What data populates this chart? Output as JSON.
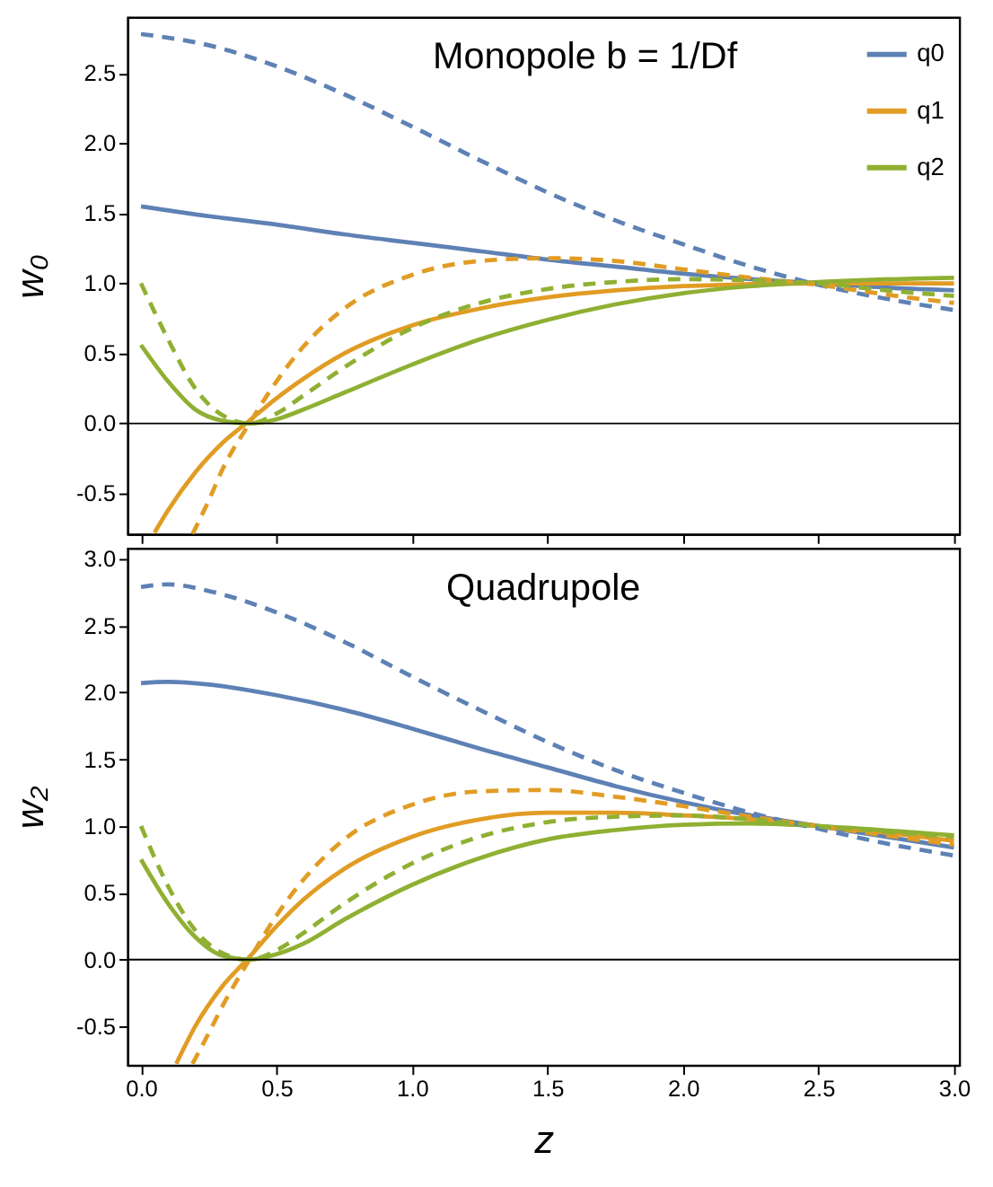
{
  "chart_data": [
    {
      "type": "line",
      "ylabel": "w₀",
      "annotations": [
        "Monopole    b = 1/Df"
      ],
      "xlim": [
        -0.05,
        3.02
      ],
      "ylim": [
        -0.79,
        2.9
      ],
      "xticks": [
        0,
        0.5,
        1,
        1.5,
        2,
        2.5,
        3
      ],
      "yticks": [
        -0.5,
        {
          "value": 0,
          "label": "0.0"
        },
        0.5,
        {
          "value": 1,
          "label": "1.0"
        },
        1.5,
        {
          "value": 2,
          "label": "2.0"
        },
        2.5
      ],
      "tick_labels": "y",
      "grid": false,
      "legend": "top right",
      "ref_lines": [
        {
          "axis": "y",
          "value": 0,
          "color": "#000000"
        }
      ],
      "series": [
        {
          "name": "q0",
          "color": "#5e81b5",
          "line_style": "solid",
          "x": [
            0,
            0.25,
            0.5,
            0.75,
            1.0,
            1.25,
            1.5,
            1.75,
            2.0,
            2.25,
            2.5,
            2.75,
            3.0
          ],
          "values": [
            1.55,
            1.48,
            1.42,
            1.35,
            1.29,
            1.23,
            1.17,
            1.12,
            1.07,
            1.03,
            1.0,
            0.97,
            0.95
          ]
        },
        {
          "name": "q1",
          "color": "#e19c24",
          "line_style": "solid",
          "x": [
            0.05,
            0.1,
            0.2,
            0.3,
            0.4,
            0.5,
            0.6,
            0.75,
            1.0,
            1.25,
            1.5,
            1.75,
            2.0,
            2.5,
            3.0
          ],
          "values": [
            -0.78,
            -0.62,
            -0.35,
            -0.14,
            0.02,
            0.18,
            0.32,
            0.5,
            0.7,
            0.82,
            0.9,
            0.95,
            0.98,
            1.0,
            1.0
          ]
        },
        {
          "name": "q2",
          "color": "#8fb032",
          "line_style": "solid",
          "x": [
            0,
            0.1,
            0.2,
            0.3,
            0.4,
            0.5,
            0.6,
            0.75,
            1.0,
            1.25,
            1.5,
            1.75,
            2.0,
            2.25,
            2.5,
            3.0
          ],
          "values": [
            0.56,
            0.3,
            0.1,
            0.02,
            0.0,
            0.03,
            0.1,
            0.22,
            0.42,
            0.6,
            0.74,
            0.85,
            0.93,
            0.98,
            1.01,
            1.04
          ]
        },
        {
          "color": "#5e81b5",
          "line_style": "dashed",
          "x": [
            0,
            0.25,
            0.5,
            0.75,
            1.0,
            1.25,
            1.5,
            1.75,
            2.0,
            2.25,
            2.5,
            2.75,
            3.0
          ],
          "values": [
            2.78,
            2.7,
            2.55,
            2.35,
            2.12,
            1.88,
            1.65,
            1.45,
            1.28,
            1.12,
            0.99,
            0.89,
            0.81
          ]
        },
        {
          "color": "#e19c24",
          "line_style": "dashed",
          "x": [
            0.19,
            0.25,
            0.3,
            0.4,
            0.5,
            0.6,
            0.75,
            1.0,
            1.25,
            1.5,
            1.75,
            2.0,
            2.25,
            2.5,
            2.75,
            3.0
          ],
          "values": [
            -0.79,
            -0.55,
            -0.33,
            0.0,
            0.3,
            0.55,
            0.82,
            1.06,
            1.16,
            1.18,
            1.16,
            1.1,
            1.04,
            0.99,
            0.92,
            0.86
          ]
        },
        {
          "color": "#8fb032",
          "line_style": "dashed",
          "x": [
            0,
            0.1,
            0.2,
            0.3,
            0.4,
            0.5,
            0.6,
            0.75,
            1.0,
            1.25,
            1.5,
            1.75,
            2.0,
            2.5,
            2.75,
            3.0
          ],
          "values": [
            1.0,
            0.6,
            0.25,
            0.06,
            0.0,
            0.07,
            0.2,
            0.4,
            0.68,
            0.86,
            0.96,
            1.01,
            1.03,
            1.0,
            0.95,
            0.91
          ]
        }
      ]
    },
    {
      "type": "line",
      "xlabel": "z",
      "ylabel": "w₂",
      "annotations": [
        "Quadrupole"
      ],
      "xlim": [
        -0.05,
        3.02
      ],
      "ylim": [
        -0.79,
        3.08
      ],
      "xticks": [
        {
          "value": 0,
          "label": "0.0"
        },
        0.5,
        {
          "value": 1,
          "label": "1.0"
        },
        1.5,
        {
          "value": 2,
          "label": "2.0"
        },
        2.5,
        {
          "value": 3,
          "label": "3.0"
        }
      ],
      "yticks": [
        -0.5,
        {
          "value": 0,
          "label": "0.0"
        },
        0.5,
        {
          "value": 1,
          "label": "1.0"
        },
        1.5,
        {
          "value": 2,
          "label": "2.0"
        },
        2.5,
        {
          "value": 3,
          "label": "3.0"
        }
      ],
      "grid": false,
      "ref_lines": [
        {
          "axis": "y",
          "value": 0,
          "color": "#000000"
        }
      ],
      "series": [
        {
          "color": "#5e81b5",
          "line_style": "solid",
          "x": [
            0,
            0.1,
            0.25,
            0.5,
            0.75,
            1.0,
            1.25,
            1.5,
            1.75,
            2.0,
            2.25,
            2.5,
            2.75,
            3.0
          ],
          "values": [
            2.07,
            2.08,
            2.06,
            1.98,
            1.87,
            1.73,
            1.58,
            1.44,
            1.3,
            1.18,
            1.08,
            1.0,
            0.92,
            0.84
          ]
        },
        {
          "color": "#e19c24",
          "line_style": "solid",
          "x": [
            0.13,
            0.2,
            0.3,
            0.4,
            0.5,
            0.6,
            0.75,
            1.0,
            1.25,
            1.5,
            1.75,
            2.0,
            2.25,
            2.5,
            2.75,
            3.0
          ],
          "values": [
            -0.78,
            -0.5,
            -0.2,
            0.02,
            0.25,
            0.45,
            0.68,
            0.92,
            1.05,
            1.1,
            1.1,
            1.08,
            1.05,
            1.0,
            0.95,
            0.89
          ]
        },
        {
          "color": "#8fb032",
          "line_style": "solid",
          "x": [
            0,
            0.1,
            0.2,
            0.3,
            0.4,
            0.5,
            0.6,
            0.75,
            1.0,
            1.25,
            1.5,
            1.75,
            2.0,
            2.25,
            2.5,
            3.0
          ],
          "values": [
            0.75,
            0.42,
            0.17,
            0.03,
            0.0,
            0.04,
            0.12,
            0.3,
            0.56,
            0.76,
            0.9,
            0.97,
            1.01,
            1.02,
            1.0,
            0.93
          ]
        },
        {
          "color": "#5e81b5",
          "line_style": "dashed",
          "x": [
            0,
            0.1,
            0.25,
            0.5,
            0.75,
            1.0,
            1.25,
            1.5,
            1.75,
            2.0,
            2.25,
            2.5,
            2.75,
            3.0
          ],
          "values": [
            2.79,
            2.81,
            2.76,
            2.6,
            2.38,
            2.12,
            1.87,
            1.63,
            1.42,
            1.25,
            1.1,
            0.98,
            0.87,
            0.78
          ]
        },
        {
          "color": "#e19c24",
          "line_style": "dashed",
          "x": [
            0.19,
            0.25,
            0.3,
            0.4,
            0.5,
            0.6,
            0.75,
            1.0,
            1.25,
            1.5,
            1.75,
            2.0,
            2.25,
            2.5,
            2.75,
            3.0
          ],
          "values": [
            -0.78,
            -0.55,
            -0.35,
            0.0,
            0.33,
            0.6,
            0.9,
            1.16,
            1.26,
            1.27,
            1.22,
            1.15,
            1.07,
            1.0,
            0.93,
            0.86
          ]
        },
        {
          "color": "#8fb032",
          "line_style": "dashed",
          "x": [
            0,
            0.1,
            0.2,
            0.3,
            0.4,
            0.5,
            0.6,
            0.75,
            1.0,
            1.25,
            1.5,
            1.75,
            2.0,
            2.25,
            2.5,
            3.0
          ],
          "values": [
            1.0,
            0.55,
            0.22,
            0.05,
            0.0,
            0.07,
            0.2,
            0.42,
            0.72,
            0.92,
            1.03,
            1.07,
            1.08,
            1.05,
            1.0,
            0.92
          ]
        }
      ]
    }
  ]
}
